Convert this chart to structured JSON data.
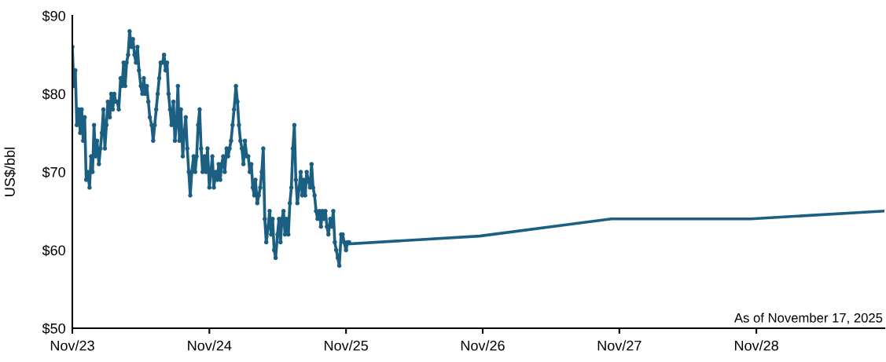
{
  "chart_data": {
    "type": "line",
    "ylabel": "US$/bbl",
    "xlim": [
      "2023-11-01",
      "2029-10-09"
    ],
    "ylim": [
      50,
      90
    ],
    "xticks": [
      {
        "value": "2023-11-01",
        "label": "Nov/23"
      },
      {
        "value": "2024-11-01",
        "label": "Nov/24"
      },
      {
        "value": "2025-11-01",
        "label": "Nov/25"
      },
      {
        "value": "2026-11-01",
        "label": "Nov/26"
      },
      {
        "value": "2027-11-01",
        "label": "Nov/27"
      },
      {
        "value": "2028-11-01",
        "label": "Nov/28"
      }
    ],
    "yticks": [
      {
        "value": 50,
        "label": "$50"
      },
      {
        "value": 60,
        "label": "$60"
      },
      {
        "value": 70,
        "label": "$70"
      },
      {
        "value": 80,
        "label": "$80"
      },
      {
        "value": 90,
        "label": "$90"
      }
    ],
    "grid": false,
    "annotations": [
      "As of November 17, 2025"
    ],
    "series": [
      {
        "color": "#1b5f82",
        "marker": "circle",
        "x": [
          "2023-11-01",
          "2023-11-05",
          "2023-11-09",
          "2023-11-13",
          "2023-11-18",
          "2023-11-22",
          "2023-11-26",
          "2023-11-30",
          "2023-12-04",
          "2023-12-08",
          "2023-12-12",
          "2023-12-17",
          "2023-12-21",
          "2023-12-25",
          "2023-12-29",
          "2024-01-02",
          "2024-01-06",
          "2024-01-11",
          "2024-01-15",
          "2024-01-19",
          "2024-01-23",
          "2024-01-27",
          "2024-01-31",
          "2024-02-04",
          "2024-02-09",
          "2024-02-13",
          "2024-02-17",
          "2024-02-21",
          "2024-02-25",
          "2024-02-29",
          "2024-03-04",
          "2024-03-09",
          "2024-03-13",
          "2024-03-17",
          "2024-03-21",
          "2024-03-25",
          "2024-03-29",
          "2024-04-02",
          "2024-04-07",
          "2024-04-11",
          "2024-04-15",
          "2024-04-19",
          "2024-04-23",
          "2024-04-27",
          "2024-05-02",
          "2024-05-06",
          "2024-05-10",
          "2024-05-14",
          "2024-05-18",
          "2024-05-22",
          "2024-05-26",
          "2024-05-31",
          "2024-06-04",
          "2024-06-08",
          "2024-06-12",
          "2024-06-16",
          "2024-06-20",
          "2024-06-24",
          "2024-06-29",
          "2024-07-03",
          "2024-07-07",
          "2024-07-11",
          "2024-07-15",
          "2024-07-19",
          "2024-07-23",
          "2024-07-28",
          "2024-08-01",
          "2024-08-05",
          "2024-08-09",
          "2024-08-13",
          "2024-08-17",
          "2024-08-22",
          "2024-08-26",
          "2024-08-30",
          "2024-09-03",
          "2024-09-07",
          "2024-09-11",
          "2024-09-15",
          "2024-09-20",
          "2024-09-24",
          "2024-09-28",
          "2024-10-02",
          "2024-10-06",
          "2024-10-10",
          "2024-10-14",
          "2024-10-19",
          "2024-10-23",
          "2024-10-27",
          "2024-11-01",
          "2024-11-05",
          "2024-11-09",
          "2024-11-13",
          "2024-11-18",
          "2024-11-22",
          "2024-11-26",
          "2024-11-30",
          "2024-12-04",
          "2024-12-08",
          "2024-12-12",
          "2024-12-17",
          "2024-12-21",
          "2024-12-25",
          "2024-12-29",
          "2025-01-02",
          "2025-01-06",
          "2025-01-11",
          "2025-01-15",
          "2025-01-19",
          "2025-01-23",
          "2025-01-27",
          "2025-01-31",
          "2025-02-04",
          "2025-02-09",
          "2025-02-13",
          "2025-02-17",
          "2025-02-21",
          "2025-02-25",
          "2025-03-01",
          "2025-03-04",
          "2025-03-09",
          "2025-03-13",
          "2025-03-17",
          "2025-03-21",
          "2025-03-25",
          "2025-03-29",
          "2025-04-02",
          "2025-04-07",
          "2025-04-11",
          "2025-04-15",
          "2025-04-19",
          "2025-04-23",
          "2025-04-27",
          "2025-05-02",
          "2025-05-06",
          "2025-05-10",
          "2025-05-14",
          "2025-05-18",
          "2025-05-22",
          "2025-05-26",
          "2025-05-31",
          "2025-06-04",
          "2025-06-08",
          "2025-06-12",
          "2025-06-16",
          "2025-06-20",
          "2025-06-24",
          "2025-06-29",
          "2025-07-03",
          "2025-07-07",
          "2025-07-11",
          "2025-07-15",
          "2025-07-19",
          "2025-07-23",
          "2025-07-28",
          "2025-08-01",
          "2025-08-05",
          "2025-08-09",
          "2025-08-13",
          "2025-08-17",
          "2025-08-22",
          "2025-08-26",
          "2025-08-30",
          "2025-09-03",
          "2025-09-07",
          "2025-09-11",
          "2025-09-15",
          "2025-09-20",
          "2025-09-24",
          "2025-09-28",
          "2025-10-02",
          "2025-10-06",
          "2025-10-10",
          "2025-10-14",
          "2025-10-19",
          "2025-10-23",
          "2025-10-27",
          "2025-11-01",
          "2025-11-05",
          "2025-11-09"
        ],
        "values": [
          86,
          81,
          83,
          76,
          78,
          75,
          78,
          74,
          77,
          69,
          70,
          68,
          72,
          70,
          76,
          72,
          74,
          71,
          73,
          75,
          78,
          73,
          76,
          79,
          77,
          80,
          78,
          80,
          79,
          79,
          78,
          82,
          81,
          84,
          81,
          84,
          85,
          88,
          86,
          87,
          85,
          84,
          86,
          83,
          81,
          80,
          82,
          80,
          81,
          79,
          77,
          76,
          74,
          76,
          78,
          80,
          82,
          84,
          84,
          85,
          83,
          84,
          80,
          78,
          76,
          79,
          74,
          76,
          81,
          74,
          78,
          72,
          75,
          77,
          73,
          70,
          67,
          70,
          72,
          70,
          72,
          76,
          78,
          73,
          70,
          72,
          70,
          73,
          68,
          70,
          72,
          68,
          70,
          69,
          71,
          69,
          71,
          72,
          70,
          73,
          72,
          73,
          74,
          76,
          78,
          81,
          79,
          76,
          74,
          73,
          71,
          74,
          72,
          72,
          70,
          71,
          68,
          67,
          69,
          66,
          67,
          68,
          70,
          73,
          64,
          61,
          63,
          65,
          62,
          64,
          60,
          59,
          62,
          64,
          61,
          64,
          65,
          62,
          64,
          62,
          66,
          68,
          73,
          76,
          69,
          66,
          68,
          70,
          67,
          69,
          67,
          70,
          69,
          68,
          71,
          68,
          67,
          65,
          64,
          65,
          63,
          65,
          64,
          65,
          63,
          62,
          64,
          63,
          65,
          61,
          60,
          59,
          58,
          62,
          62,
          61,
          60,
          61,
          61
        ]
      },
      {
        "color": "#1b5f82",
        "marker": "none",
        "x": [
          "2025-11-09",
          "2026-10-24",
          "2027-10-11",
          "2028-10-16",
          "2029-10-09"
        ],
        "values": [
          60.8,
          61.8,
          64.0,
          64.0,
          65.0
        ]
      }
    ]
  }
}
